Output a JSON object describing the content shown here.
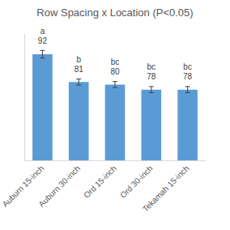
{
  "chart_data": {
    "type": "bar",
    "title": "Row Spacing x Location (P<0.05)",
    "categories": [
      "Auburn 15-inch",
      "Auburn 30-inch",
      "Ord 15-inch",
      "Ord 30-inch",
      "Tekamah 15-inch"
    ],
    "values": [
      92,
      81,
      80,
      78,
      78
    ],
    "errors": [
      1.5,
      1.2,
      1.2,
      1.2,
      1.2
    ],
    "letters": [
      "a",
      "b",
      "bc",
      "bc",
      "bc"
    ],
    "color": "#5b9bd5",
    "ylim": [
      50,
      100
    ],
    "grid": false,
    "data_labels": true,
    "tick_labels": "x"
  }
}
